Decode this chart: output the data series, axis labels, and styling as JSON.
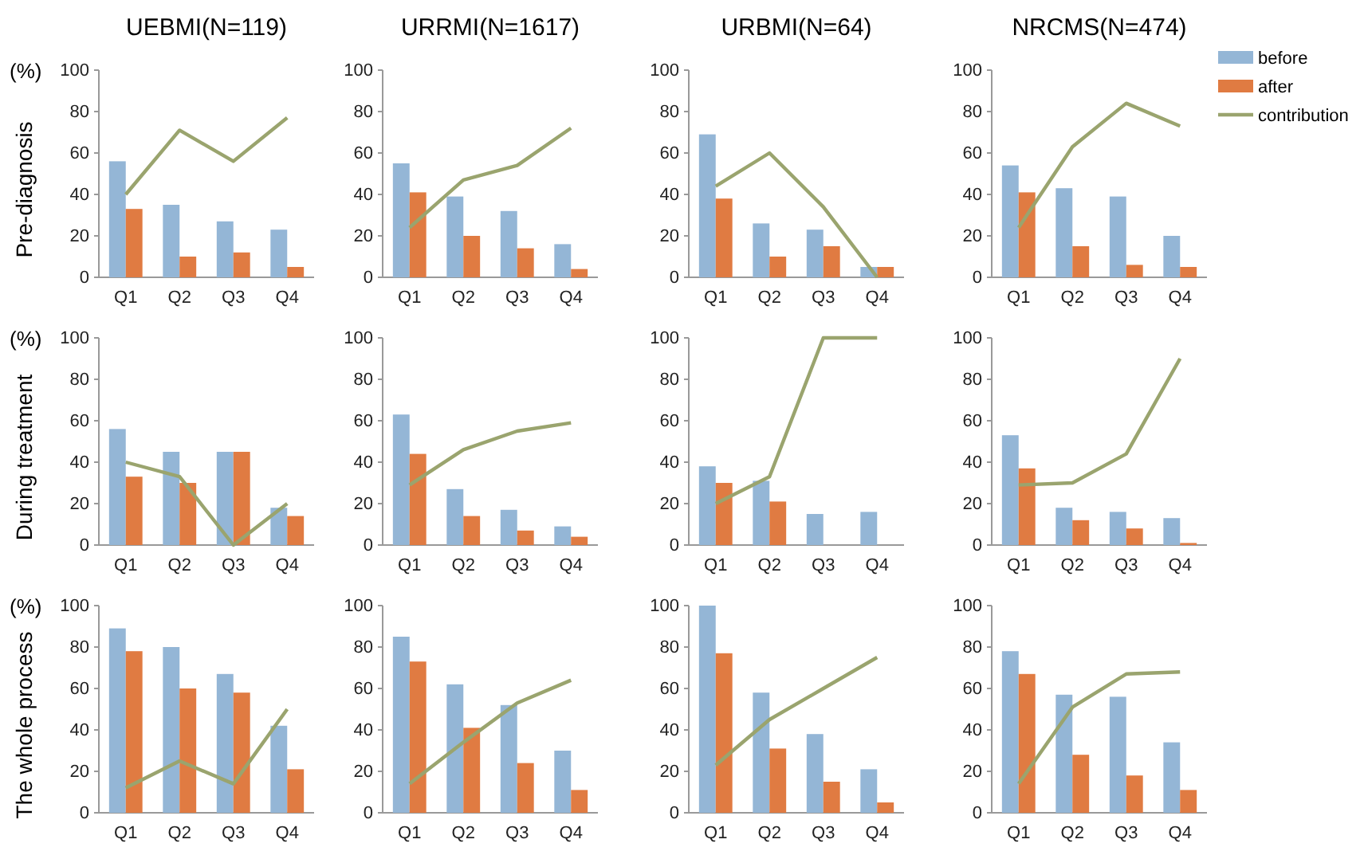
{
  "chart_data": [
    {
      "type": "bar",
      "title": "UEBMI(N=119)",
      "ylabel": "Pre-diagnosis",
      "annotations": [
        "(%)"
      ],
      "categories": [
        "Q1",
        "Q2",
        "Q3",
        "Q4"
      ],
      "ylim": [
        0,
        100
      ],
      "yticks": [
        0,
        20,
        40,
        60,
        80,
        100
      ],
      "grid": false,
      "legend": false,
      "series": [
        {
          "color": "#94b6d6",
          "values": [
            56,
            35,
            27,
            23
          ]
        },
        {
          "color": "#e07b42",
          "values": [
            33,
            10,
            12,
            5
          ]
        },
        {
          "type": "line",
          "color": "#9aa46e",
          "values": [
            40,
            71,
            56,
            77
          ]
        }
      ]
    },
    {
      "type": "bar",
      "title": "URRMI(N=1617)",
      "categories": [
        "Q1",
        "Q2",
        "Q3",
        "Q4"
      ],
      "ylim": [
        0,
        100
      ],
      "yticks": [
        0,
        20,
        40,
        60,
        80,
        100
      ],
      "grid": false,
      "legend": false,
      "series": [
        {
          "color": "#94b6d6",
          "values": [
            55,
            39,
            32,
            16
          ]
        },
        {
          "color": "#e07b42",
          "values": [
            41,
            20,
            14,
            4
          ]
        },
        {
          "type": "line",
          "color": "#9aa46e",
          "values": [
            24,
            47,
            54,
            72
          ]
        }
      ]
    },
    {
      "type": "bar",
      "title": "URBMI(N=64)",
      "categories": [
        "Q1",
        "Q2",
        "Q3",
        "Q4"
      ],
      "ylim": [
        0,
        100
      ],
      "yticks": [
        0,
        20,
        40,
        60,
        80,
        100
      ],
      "grid": false,
      "legend": false,
      "series": [
        {
          "color": "#94b6d6",
          "values": [
            69,
            26,
            23,
            5
          ]
        },
        {
          "color": "#e07b42",
          "values": [
            38,
            10,
            15,
            5
          ]
        },
        {
          "type": "line",
          "color": "#9aa46e",
          "values": [
            44,
            60,
            34,
            0
          ]
        }
      ]
    },
    {
      "type": "bar",
      "title": "NRCMS(N=474)",
      "categories": [
        "Q1",
        "Q2",
        "Q3",
        "Q4"
      ],
      "ylim": [
        0,
        100
      ],
      "yticks": [
        0,
        20,
        40,
        60,
        80,
        100
      ],
      "grid": false,
      "legend": "top right",
      "series": [
        {
          "name": "before",
          "color": "#94b6d6",
          "values": [
            54,
            43,
            39,
            20
          ]
        },
        {
          "name": "after",
          "color": "#e07b42",
          "values": [
            41,
            15,
            6,
            5
          ]
        },
        {
          "name": "contribution",
          "type": "line",
          "color": "#9aa46e",
          "values": [
            24,
            63,
            84,
            73
          ]
        }
      ]
    },
    {
      "type": "bar",
      "ylabel": "During treatment",
      "annotations": [
        "(%)"
      ],
      "categories": [
        "Q1",
        "Q2",
        "Q3",
        "Q4"
      ],
      "ylim": [
        0,
        100
      ],
      "yticks": [
        0,
        20,
        40,
        60,
        80,
        100
      ],
      "grid": false,
      "legend": false,
      "series": [
        {
          "color": "#94b6d6",
          "values": [
            56,
            45,
            45,
            18
          ]
        },
        {
          "color": "#e07b42",
          "values": [
            33,
            30,
            45,
            14
          ]
        },
        {
          "type": "line",
          "color": "#9aa46e",
          "values": [
            40,
            33,
            0,
            20
          ]
        }
      ]
    },
    {
      "type": "bar",
      "categories": [
        "Q1",
        "Q2",
        "Q3",
        "Q4"
      ],
      "ylim": [
        0,
        100
      ],
      "yticks": [
        0,
        20,
        40,
        60,
        80,
        100
      ],
      "grid": false,
      "legend": false,
      "series": [
        {
          "color": "#94b6d6",
          "values": [
            63,
            27,
            17,
            9
          ]
        },
        {
          "color": "#e07b42",
          "values": [
            44,
            14,
            7,
            4
          ]
        },
        {
          "type": "line",
          "color": "#9aa46e",
          "values": [
            29,
            46,
            55,
            59
          ]
        }
      ]
    },
    {
      "type": "bar",
      "categories": [
        "Q1",
        "Q2",
        "Q3",
        "Q4"
      ],
      "ylim": [
        0,
        100
      ],
      "yticks": [
        0,
        20,
        40,
        60,
        80,
        100
      ],
      "grid": false,
      "legend": false,
      "series": [
        {
          "color": "#94b6d6",
          "values": [
            38,
            31,
            15,
            16
          ]
        },
        {
          "color": "#e07b42",
          "values": [
            30,
            21,
            0,
            0
          ]
        },
        {
          "type": "line",
          "color": "#9aa46e",
          "values": [
            20,
            33,
            100,
            100
          ]
        }
      ]
    },
    {
      "type": "bar",
      "categories": [
        "Q1",
        "Q2",
        "Q3",
        "Q4"
      ],
      "ylim": [
        0,
        100
      ],
      "yticks": [
        0,
        20,
        40,
        60,
        80,
        100
      ],
      "grid": false,
      "legend": false,
      "series": [
        {
          "color": "#94b6d6",
          "values": [
            53,
            18,
            16,
            13
          ]
        },
        {
          "color": "#e07b42",
          "values": [
            37,
            12,
            8,
            1
          ]
        },
        {
          "type": "line",
          "color": "#9aa46e",
          "values": [
            29,
            30,
            44,
            90
          ]
        }
      ]
    },
    {
      "type": "bar",
      "ylabel": "The whole process",
      "annotations": [
        "(%)"
      ],
      "categories": [
        "Q1",
        "Q2",
        "Q3",
        "Q4"
      ],
      "ylim": [
        0,
        100
      ],
      "yticks": [
        0,
        20,
        40,
        60,
        80,
        100
      ],
      "grid": false,
      "legend": false,
      "series": [
        {
          "color": "#94b6d6",
          "values": [
            89,
            80,
            67,
            42
          ]
        },
        {
          "color": "#e07b42",
          "values": [
            78,
            60,
            58,
            21
          ]
        },
        {
          "type": "line",
          "color": "#9aa46e",
          "values": [
            12,
            25,
            14,
            50
          ]
        }
      ]
    },
    {
      "type": "bar",
      "categories": [
        "Q1",
        "Q2",
        "Q3",
        "Q4"
      ],
      "ylim": [
        0,
        100
      ],
      "yticks": [
        0,
        20,
        40,
        60,
        80,
        100
      ],
      "grid": false,
      "legend": false,
      "series": [
        {
          "color": "#94b6d6",
          "values": [
            85,
            62,
            52,
            30
          ]
        },
        {
          "color": "#e07b42",
          "values": [
            73,
            41,
            24,
            11
          ]
        },
        {
          "type": "line",
          "color": "#9aa46e",
          "values": [
            14,
            34,
            53,
            64
          ]
        }
      ]
    },
    {
      "type": "bar",
      "categories": [
        "Q1",
        "Q2",
        "Q3",
        "Q4"
      ],
      "ylim": [
        0,
        100
      ],
      "yticks": [
        0,
        20,
        40,
        60,
        80,
        100
      ],
      "grid": false,
      "legend": false,
      "series": [
        {
          "color": "#94b6d6",
          "values": [
            100,
            58,
            38,
            21
          ]
        },
        {
          "color": "#e07b42",
          "values": [
            77,
            31,
            15,
            5
          ]
        },
        {
          "type": "line",
          "color": "#9aa46e",
          "values": [
            23,
            45,
            60,
            75
          ]
        }
      ]
    },
    {
      "type": "bar",
      "categories": [
        "Q1",
        "Q2",
        "Q3",
        "Q4"
      ],
      "ylim": [
        0,
        100
      ],
      "yticks": [
        0,
        20,
        40,
        60,
        80,
        100
      ],
      "grid": false,
      "legend": false,
      "series": [
        {
          "color": "#94b6d6",
          "values": [
            78,
            57,
            56,
            34
          ]
        },
        {
          "color": "#e07b42",
          "values": [
            67,
            28,
            18,
            11
          ]
        },
        {
          "type": "line",
          "color": "#9aa46e",
          "values": [
            14,
            51,
            67,
            68
          ]
        }
      ]
    }
  ]
}
